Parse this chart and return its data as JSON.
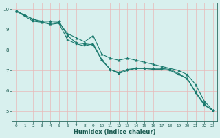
{
  "xlabel": "Humidex (Indice chaleur)",
  "ylabel": "",
  "bg_color": "#d8f0ee",
  "plot_bg_color": "#d8f0ee",
  "grid_color": "#e8b8b8",
  "line_color": "#1a7a6e",
  "xlim": [
    -0.5,
    23.5
  ],
  "ylim": [
    4.5,
    10.3
  ],
  "xticks": [
    0,
    1,
    2,
    3,
    4,
    5,
    6,
    7,
    8,
    9,
    10,
    11,
    12,
    13,
    14,
    15,
    16,
    17,
    18,
    19,
    20,
    21,
    22,
    23
  ],
  "yticks": [
    5,
    6,
    7,
    8,
    9,
    10
  ],
  "series": [
    {
      "x": [
        0,
        1,
        2,
        3,
        4,
        5,
        6,
        7,
        8,
        9,
        10,
        11,
        12,
        13,
        14,
        15,
        16,
        17,
        18,
        19,
        20,
        21,
        22,
        23
      ],
      "y": [
        9.9,
        9.7,
        9.5,
        9.4,
        9.4,
        9.4,
        8.7,
        8.35,
        8.3,
        8.25,
        7.5,
        7.05,
        6.9,
        7.05,
        7.1,
        7.1,
        7.1,
        7.1,
        7.05,
        6.85,
        6.6,
        5.95,
        5.35,
        5.05
      ],
      "marker": "D",
      "marker_size": 2.0
    },
    {
      "x": [
        0,
        1,
        2,
        3,
        4,
        5,
        6,
        7,
        8,
        9,
        10,
        11,
        12,
        13,
        14,
        15,
        16,
        17,
        18,
        19,
        20,
        21,
        22,
        23
      ],
      "y": [
        9.9,
        9.7,
        9.5,
        9.35,
        9.3,
        9.35,
        8.8,
        8.6,
        8.4,
        8.7,
        7.8,
        7.6,
        7.5,
        7.6,
        7.5,
        7.4,
        7.3,
        7.2,
        7.1,
        7.0,
        6.8,
        6.3,
        5.5,
        5.05
      ],
      "marker": "^",
      "marker_size": 2.5
    },
    {
      "x": [
        0,
        1,
        2,
        3,
        4,
        5,
        6,
        7,
        8,
        9,
        10,
        11,
        12,
        13,
        14,
        15,
        16,
        17,
        18,
        19,
        20,
        21,
        22,
        23
      ],
      "y": [
        9.9,
        9.65,
        9.4,
        9.35,
        9.25,
        9.3,
        8.5,
        8.3,
        8.2,
        8.3,
        7.55,
        7.05,
        6.85,
        7.0,
        7.1,
        7.1,
        7.05,
        7.05,
        7.0,
        6.8,
        6.6,
        5.9,
        5.3,
        5.05
      ],
      "marker": "s",
      "marker_size": 2.0
    }
  ],
  "tick_color": "#2a6a60",
  "xlabel_fontsize": 6.0,
  "xlabel_color": "#1a5a50",
  "xtick_fontsize": 4.2,
  "ytick_fontsize": 5.0
}
